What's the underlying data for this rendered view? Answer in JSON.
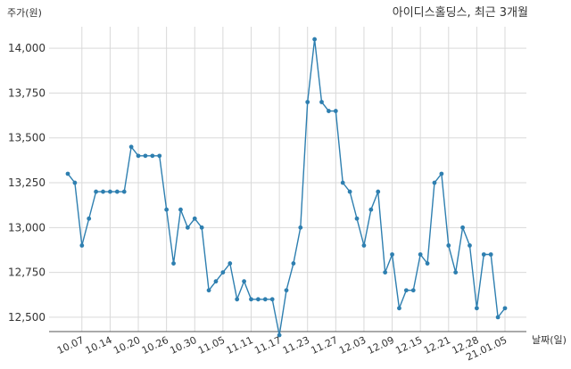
{
  "chart_data": {
    "type": "line",
    "title": "아이디스홀딩스, 최근 3개월",
    "ylabel": "주가(원)",
    "xlabel": "날짜(일)",
    "ylim": [
      12420,
      14120
    ],
    "grid": true,
    "yticks": [
      12500,
      12750,
      13000,
      13250,
      13500,
      13750,
      14000
    ],
    "ytick_labels": [
      "12,500",
      "12,750",
      "13,000",
      "13,250",
      "13,500",
      "13,750",
      "14,000"
    ],
    "xtick_labels": [
      "10.07",
      "10.14",
      "10.20",
      "10.26",
      "10.30",
      "11.05",
      "11.11",
      "11.17",
      "11.23",
      "11.27",
      "12.03",
      "12.09",
      "12.15",
      "12.21",
      "12.28",
      "21.01.05"
    ],
    "xtick_indices": [
      2,
      6,
      10,
      14,
      18,
      22,
      26,
      30,
      34,
      38,
      42,
      46,
      50,
      54,
      58,
      62
    ],
    "series": [
      {
        "color": "#2e7fb0",
        "values": [
          13300,
          13250,
          12900,
          13050,
          13200,
          13200,
          13200,
          13200,
          13200,
          13450,
          13400,
          13400,
          13400,
          13400,
          13100,
          12800,
          13100,
          13000,
          13050,
          13000,
          12650,
          12700,
          12750,
          12800,
          12600,
          12700,
          12600,
          12600,
          12600,
          12600,
          12400,
          12650,
          12800,
          13000,
          13700,
          14050,
          13700,
          13650,
          13650,
          13250,
          13200,
          13050,
          12900,
          13100,
          13200,
          12750,
          12850,
          12550,
          12650,
          12650,
          12850,
          12800,
          13250,
          13300,
          12900,
          12750,
          13000,
          12900,
          12550,
          12850,
          12850,
          12500,
          12550
        ]
      }
    ]
  }
}
